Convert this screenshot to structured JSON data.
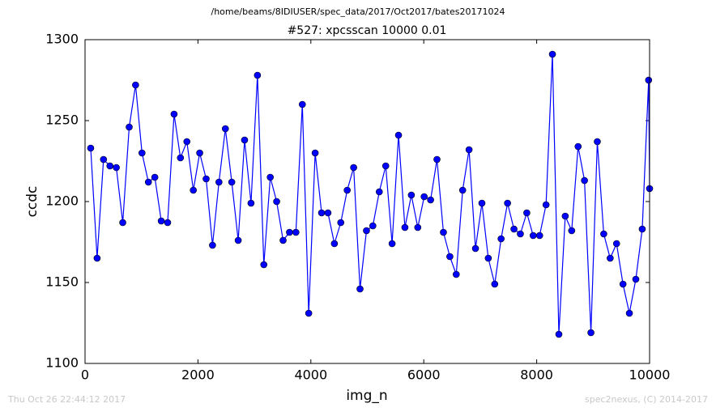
{
  "chart_data": {
    "type": "line",
    "suptitle": "/home/beams/8IDIUSER/spec_data/2017/Oct2017/bates20171024",
    "title": "#527: xpcsscan 10000 0.01",
    "xlabel": "img_n",
    "ylabel": "ccdc",
    "footer_left": "Thu Oct 26 22:44:12 2017",
    "footer_right": "spec2nexus, (C) 2014-2017",
    "xlim": [
      0,
      10000
    ],
    "xticks": [
      0,
      2000,
      4000,
      6000,
      8000,
      10000
    ],
    "ylim": [
      1100,
      1300
    ],
    "yticks": [
      1100,
      1150,
      1200,
      1250,
      1300
    ],
    "color": "#0000ff",
    "x": [
      100,
      214,
      327,
      441,
      554,
      668,
      782,
      895,
      1009,
      1122,
      1236,
      1350,
      1463,
      1577,
      1690,
      1804,
      1918,
      2031,
      2145,
      2258,
      2372,
      2486,
      2599,
      2713,
      2826,
      2940,
      3054,
      3167,
      3281,
      3394,
      3508,
      3622,
      3735,
      3849,
      3962,
      4076,
      4190,
      4303,
      4417,
      4530,
      4644,
      4758,
      4871,
      4985,
      5098,
      5212,
      5326,
      5439,
      5553,
      5666,
      5780,
      5894,
      6007,
      6121,
      6234,
      6348,
      6462,
      6575,
      6689,
      6802,
      6916,
      7030,
      7143,
      7257,
      7370,
      7484,
      7598,
      7711,
      7825,
      7938,
      8052,
      8166,
      8279,
      8393,
      8506,
      8620,
      8734,
      8847,
      8961,
      9074,
      9188,
      9302,
      9415,
      9529,
      9642,
      9756,
      9870,
      9983,
      10000
    ],
    "values": [
      1233,
      1165,
      1226,
      1222,
      1221,
      1187,
      1246,
      1272,
      1230,
      1212,
      1215,
      1188,
      1187,
      1254,
      1227,
      1237,
      1207,
      1230,
      1214,
      1173,
      1212,
      1245,
      1212,
      1176,
      1238,
      1199,
      1278,
      1161,
      1215,
      1200,
      1176,
      1181,
      1181,
      1260,
      1131,
      1230,
      1193,
      1193,
      1174,
      1187,
      1207,
      1221,
      1146,
      1182,
      1185,
      1206,
      1222,
      1174,
      1241,
      1184,
      1204,
      1184,
      1203,
      1201,
      1226,
      1181,
      1166,
      1155,
      1207,
      1232,
      1171,
      1199,
      1165,
      1149,
      1177,
      1199,
      1183,
      1180,
      1193,
      1179,
      1179,
      1198,
      1291,
      1118,
      1191,
      1182,
      1234,
      1213,
      1119,
      1237,
      1180,
      1165,
      1174,
      1149,
      1131,
      1152,
      1183,
      1275,
      1208
    ]
  }
}
